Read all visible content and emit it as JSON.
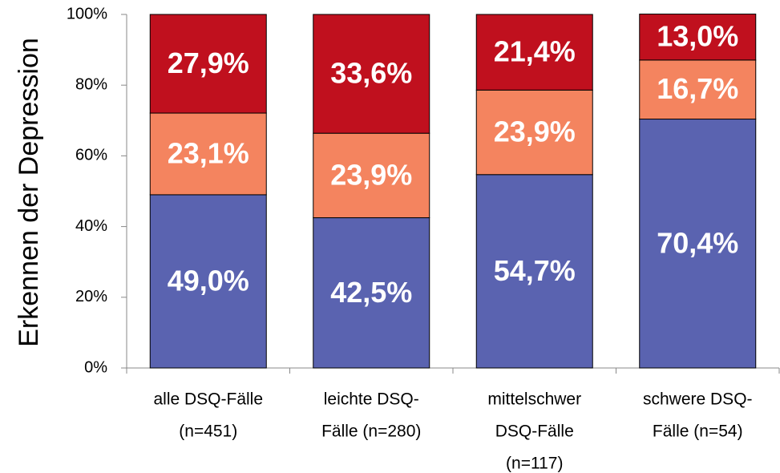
{
  "chart_data": {
    "type": "stacked-bar",
    "y_label": "Erkennen der Depression",
    "categories": [
      [
        "alle DSQ-Fälle",
        "(n=451)"
      ],
      [
        "leichte DSQ-",
        "Fälle (n=280)"
      ],
      [
        "mittelschwer",
        "DSQ-Fälle",
        "(n=117)"
      ],
      [
        "schwere DSQ-",
        "Fälle (n=54)"
      ]
    ],
    "series": [
      {
        "color": "#5a63b0",
        "values": [
          49.0,
          42.5,
          54.7,
          70.4
        ],
        "value_labels": [
          "49,0%",
          "42,5%",
          "54,7%",
          "70,4%"
        ]
      },
      {
        "color": "#f4845f",
        "values": [
          23.1,
          23.9,
          23.9,
          16.7
        ],
        "value_labels": [
          "23,1%",
          "23,9%",
          "23,9%",
          "16,7%"
        ]
      },
      {
        "color": "#c0101e",
        "values": [
          27.9,
          33.6,
          21.4,
          13.0
        ],
        "value_labels": [
          "27,9%",
          "33,6%",
          "21,4%",
          "13,0%"
        ]
      }
    ],
    "ylim": [
      0,
      100
    ],
    "yticks": [
      {
        "value": 0,
        "label": "0%"
      },
      {
        "value": 20,
        "label": "20%"
      },
      {
        "value": 40,
        "label": "40%"
      },
      {
        "value": 60,
        "label": "60%"
      },
      {
        "value": 80,
        "label": "80%"
      },
      {
        "value": 100,
        "label": "100%"
      }
    ]
  }
}
